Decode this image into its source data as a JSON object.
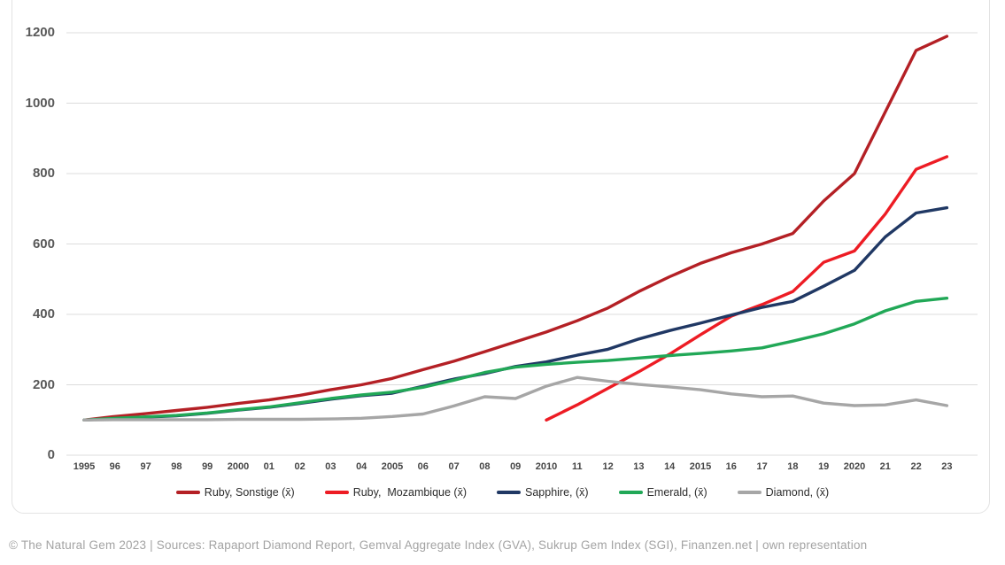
{
  "footer": {
    "text": "© The Natural Gem 2023 | Sources: Rapaport Diamond Report, Gemval Aggregate Index (GVA), Sukrup Gem Index (SGI), Finanzen.net | own representation"
  },
  "chart_data": {
    "type": "line",
    "title": "",
    "xlabel": "",
    "ylabel": "",
    "ylim": [
      0,
      1200
    ],
    "yticks": [
      0,
      200,
      400,
      600,
      800,
      1000,
      1200
    ],
    "grid": true,
    "legend_position": "bottom",
    "categories": [
      "1995",
      "96",
      "97",
      "98",
      "99",
      "2000",
      "01",
      "02",
      "03",
      "04",
      "2005",
      "06",
      "07",
      "08",
      "09",
      "2010",
      "11",
      "12",
      "13",
      "14",
      "2015",
      "16",
      "17",
      "18",
      "19",
      "2020",
      "21",
      "22",
      "23"
    ],
    "series": [
      {
        "name": "Ruby, Sonstige (x̄)",
        "color": "#b42025",
        "values": [
          100,
          110,
          118,
          127,
          136,
          147,
          157,
          170,
          186,
          200,
          218,
          243,
          267,
          294,
          322,
          350,
          382,
          418,
          465,
          507,
          545,
          575,
          600,
          630,
          722,
          800,
          975,
          1150,
          1190
        ]
      },
      {
        "name": "Ruby,  Mozambique (x̄)",
        "color": "#ed1c24",
        "values": [
          null,
          null,
          null,
          null,
          null,
          null,
          null,
          null,
          null,
          null,
          null,
          null,
          null,
          null,
          null,
          100,
          143,
          190,
          237,
          287,
          342,
          395,
          428,
          465,
          548,
          580,
          685,
          812,
          848
        ]
      },
      {
        "name": "Sapphire, (x̄)",
        "color": "#203864",
        "values": [
          100,
          104,
          108,
          112,
          119,
          128,
          136,
          147,
          159,
          169,
          176,
          196,
          216,
          232,
          252,
          265,
          284,
          301,
          330,
          354,
          375,
          398,
          420,
          437,
          480,
          525,
          620,
          688,
          703
        ]
      },
      {
        "name": "Emerald, (x̄)",
        "color": "#21a857",
        "values": [
          100,
          105,
          109,
          113,
          120,
          129,
          137,
          149,
          161,
          171,
          179,
          193,
          213,
          235,
          250,
          258,
          264,
          269,
          276,
          283,
          289,
          296,
          305,
          324,
          345,
          373,
          410,
          437,
          446
        ]
      },
      {
        "name": "Diamond, (x̄)",
        "color": "#a6a6a6",
        "values": [
          100,
          101,
          101,
          101,
          101,
          102,
          102,
          102,
          103,
          105,
          110,
          117,
          140,
          166,
          161,
          196,
          221,
          210,
          201,
          194,
          186,
          174,
          166,
          168,
          148,
          141,
          143,
          157,
          141
        ]
      }
    ]
  }
}
